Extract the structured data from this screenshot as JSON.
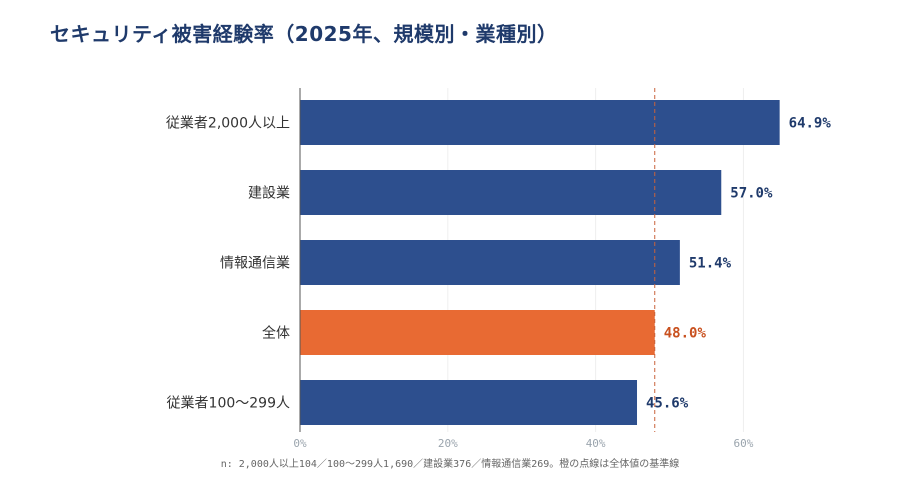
{
  "chart_data": {
    "type": "bar",
    "orientation": "horizontal",
    "title": "セキュリティ被害経験率（2025年、規模別・業種別）",
    "categories": [
      "従業者2,000人以上",
      "建設業",
      "情報通信業",
      "全体",
      "従業者100～299人"
    ],
    "values": [
      64.9,
      57.0,
      51.4,
      48.0,
      45.6
    ],
    "value_labels": [
      "64.9%",
      "57.0%",
      "51.4%",
      "48.0%",
      "45.6%"
    ],
    "highlight_category": "全体",
    "xlim": [
      0,
      64
    ],
    "x_ticks": [
      0,
      20,
      40,
      60
    ],
    "x_tick_labels": [
      "0%",
      "20%",
      "40%",
      "60%"
    ],
    "reference_line": {
      "value": 48.0,
      "style": "dashed",
      "color": "#c9623a"
    },
    "grid": "vertical",
    "footnote": "n: 2,000人以上104／100～299人1,690／建設業376／情報通信業269。橙の点線は全体値の基準線"
  },
  "colors": {
    "bar": "#2d4f8e",
    "highlight_bar": "#e86a33",
    "value_text": "#1f3a6b",
    "highlight_value_text": "#c9511f",
    "reference_line": "#c9623a",
    "title": "#1f3a6b"
  }
}
